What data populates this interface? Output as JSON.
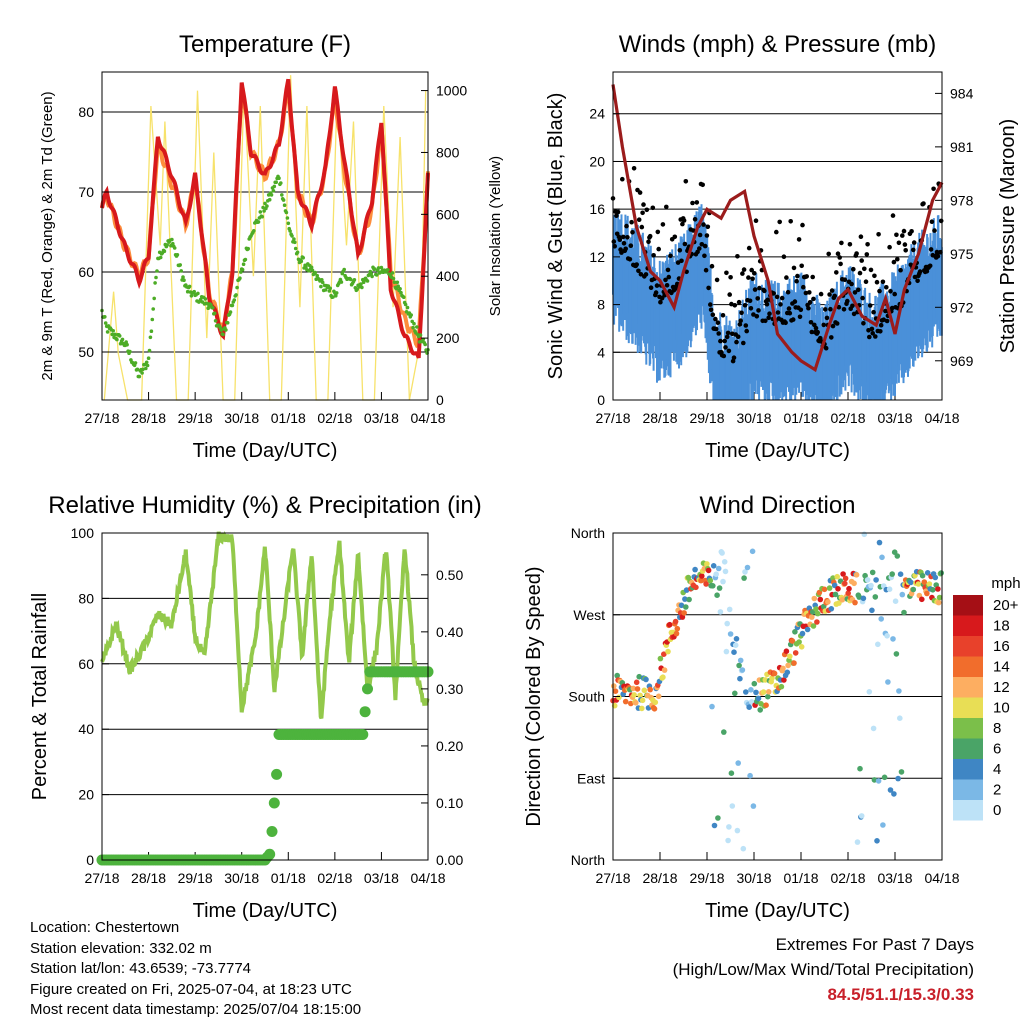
{
  "x_ticks": [
    "27/18",
    "28/18",
    "29/18",
    "30/18",
    "01/18",
    "02/18",
    "03/18",
    "04/18"
  ],
  "info": {
    "location": "Location: Chestertown",
    "elevation": "Station elevation: 332.02 m",
    "latlon": "Station lat/lon: 43.6539; -73.7774",
    "created": "Figure created on Fri, 2025-07-04, at 18:23 UTC",
    "latest": "Most recent data timestamp: 2025/07/04 18:15:00"
  },
  "extremes": {
    "title": "Extremes For Past 7 Days",
    "subtitle": "(High/Low/Max Wind/Total Precipitation)",
    "values": "84.5/51.1/15.3/0.33"
  },
  "colors": {
    "temp2m": "#d7191c",
    "temp9m": "#fd8d3c",
    "dewpoint": "#4dac26",
    "solar": "#f7e26b",
    "wind": "#4a90d9",
    "gust": "#000000",
    "pressure": "#9b1c1c",
    "rh": "#93c94b",
    "precip": "#4db33d"
  },
  "chart_data": [
    {
      "type": "line",
      "title": "Temperature (F)",
      "xlabel": "Time (Day/UTC)",
      "ylabel": "2m & 9m T (Red, Orange) & 2m Td (Green)",
      "y2label": "Solar Insolation (Yellow)",
      "ylim": [
        44,
        85
      ],
      "y2lim": [
        0,
        1060
      ],
      "yticks": [
        50,
        60,
        70,
        80
      ],
      "y2ticks": [
        0,
        200,
        400,
        600,
        800,
        1000
      ],
      "grid": true,
      "x_days": [
        0,
        0.1,
        0.5,
        0.8,
        1.0,
        1.2,
        1.5,
        1.8,
        2.0,
        2.3,
        2.6,
        2.8,
        3.0,
        3.2,
        3.5,
        3.8,
        4.0,
        4.2,
        4.5,
        4.8,
        5.0,
        5.2,
        5.5,
        5.8,
        6.0,
        6.2,
        6.5,
        6.8,
        7.0
      ],
      "series": [
        {
          "values": [
            68,
            70,
            63,
            59,
            62,
            77,
            72,
            66,
            72,
            57,
            52,
            60,
            84,
            75,
            72,
            76,
            84,
            70,
            66,
            73,
            83,
            74,
            62,
            69,
            79,
            58,
            52,
            49,
            72
          ]
        },
        {
          "values": [
            68,
            69.5,
            63,
            59.5,
            62,
            76,
            71,
            66,
            71.5,
            57.5,
            52.5,
            60,
            83,
            75,
            72,
            76,
            83,
            70,
            66,
            72.5,
            82,
            73,
            62,
            68,
            78,
            60,
            54,
            51,
            72
          ]
        },
        {
          "values": [
            55,
            53,
            51,
            47,
            49,
            62,
            64,
            58,
            57,
            56,
            52,
            56,
            60,
            65,
            68,
            72,
            66,
            62,
            60,
            58,
            57,
            60,
            58,
            60,
            60,
            60,
            56,
            52,
            50
          ]
        },
        {
          "x_days": [
            0.05,
            0.25,
            0.35,
            0.55,
            0.85,
            1.05,
            1.25,
            1.35,
            1.6,
            1.85,
            2.05,
            2.25,
            2.4,
            2.6,
            2.85,
            3.05,
            3.25,
            3.4,
            3.6,
            3.85,
            4.05,
            4.25,
            4.4,
            4.6,
            4.85,
            5.05,
            5.25,
            5.4,
            5.6,
            5.85,
            6.05,
            6.25,
            6.4,
            6.6,
            6.85,
            6.95
          ],
          "values": [
            0,
            350,
            150,
            0,
            0,
            950,
            500,
            900,
            0,
            0,
            1000,
            200,
            800,
            0,
            0,
            1010,
            400,
            950,
            0,
            0,
            1050,
            300,
            950,
            0,
            0,
            1000,
            500,
            900,
            0,
            0,
            950,
            300,
            850,
            0,
            200,
            1000
          ]
        }
      ]
    },
    {
      "type": "scatter",
      "title": "Winds (mph) & Pressure (mb)",
      "xlabel": "Time (Day/UTC)",
      "ylabel": "Sonic Wind & Gust (Blue, Black)",
      "y2label": "Station Pressure (Maroon)",
      "ylim": [
        0,
        27.5
      ],
      "y2lim": [
        966.8,
        985.2
      ],
      "yticks": [
        0,
        4,
        8,
        12,
        16,
        20,
        24
      ],
      "y2ticks": [
        969,
        972,
        975,
        978,
        981,
        984
      ],
      "grid": true,
      "pressure_x_days": [
        0,
        0.2,
        0.5,
        0.8,
        1.0,
        1.3,
        1.5,
        1.8,
        2.0,
        2.3,
        2.5,
        2.8,
        3.0,
        3.3,
        3.5,
        3.8,
        4.0,
        4.3,
        4.6,
        4.8,
        5.0,
        5.3,
        5.6,
        5.8,
        6.0,
        6.2,
        6.5,
        6.8,
        7.0
      ],
      "pressure_mb": [
        984.5,
        981,
        976.5,
        974,
        973.5,
        972,
        974,
        976.5,
        977.5,
        977,
        978,
        978.5,
        976,
        973.5,
        970.5,
        969.5,
        969,
        968.5,
        971,
        972.5,
        973,
        971.5,
        971,
        972.5,
        970.5,
        973,
        975,
        978,
        979
      ]
    },
    {
      "type": "line",
      "title": "Relative Humidity (%) & Precipitation (in)",
      "xlabel": "Time (Day/UTC)",
      "ylabel": "Percent & Total Rainfall",
      "ylim": [
        0,
        100
      ],
      "y2lim": [
        0,
        0.5733
      ],
      "yticks": [
        0,
        20,
        40,
        60,
        80,
        100
      ],
      "y2ticks": [
        0.0,
        0.1,
        0.2,
        0.3,
        0.4,
        0.5
      ],
      "y2tick_labels": [
        "0.00",
        "0.10",
        "0.20",
        "0.30",
        "0.40",
        "0.50"
      ],
      "grid": true,
      "series": [
        {
          "x_days": [
            0,
            0.3,
            0.6,
            0.9,
            1.2,
            1.5,
            1.8,
            2.0,
            2.2,
            2.5,
            2.8,
            3.0,
            3.3,
            3.5,
            3.7,
            3.9,
            4.1,
            4.3,
            4.5,
            4.7,
            4.9,
            5.1,
            5.3,
            5.5,
            5.7,
            5.9,
            6.1,
            6.3,
            6.5,
            6.7,
            6.9,
            7.0
          ],
          "values": [
            60,
            72,
            58,
            65,
            75,
            72,
            94,
            68,
            62,
            99,
            98,
            46,
            68,
            96,
            52,
            73,
            96,
            62,
            94,
            42,
            75,
            97,
            60,
            94,
            52,
            65,
            96,
            50,
            96,
            60,
            48,
            48
          ]
        },
        {
          "x_days": [
            0,
            3.5,
            3.6,
            3.65,
            3.7,
            3.75,
            3.8,
            5.6,
            5.65,
            5.7,
            5.75,
            7.0
          ],
          "values": [
            0,
            0,
            0.01,
            0.05,
            0.1,
            0.15,
            0.22,
            0.22,
            0.26,
            0.3,
            0.33,
            0.33
          ]
        }
      ]
    },
    {
      "type": "scatter",
      "title": "Wind Direction",
      "xlabel": "Time (Day/UTC)",
      "ylabel": "Direction (Colored By Speed)",
      "ylim": [
        0,
        360
      ],
      "yticks": [
        0,
        90,
        180,
        270,
        360
      ],
      "ytick_labels": [
        "North",
        "East",
        "South",
        "West",
        "North"
      ],
      "grid": true,
      "colorbar": {
        "label": "mph",
        "levels": [
          "20+",
          "18",
          "16",
          "14",
          "12",
          "10",
          "8",
          "6",
          "4",
          "2",
          "0"
        ],
        "colors": [
          "#a50f15",
          "#d7191c",
          "#e8412b",
          "#f16d2c",
          "#fdae61",
          "#e8de55",
          "#7bbf4a",
          "#4aa467",
          "#3f86c4",
          "#7bb8e6",
          "#bde2f7"
        ]
      },
      "anchors_x_days": [
        0,
        0.5,
        0.9,
        1.2,
        1.7,
        2.0,
        2.3,
        2.8,
        3.1,
        3.5,
        4.0,
        4.5,
        5.0,
        5.3,
        5.6,
        6.0,
        6.5,
        7.0
      ],
      "anchors_direction": [
        185,
        185,
        182,
        245,
        308,
        310,
        308,
        185,
        182,
        195,
        250,
        290,
        300,
        295,
        300,
        300,
        300,
        300
      ]
    }
  ]
}
